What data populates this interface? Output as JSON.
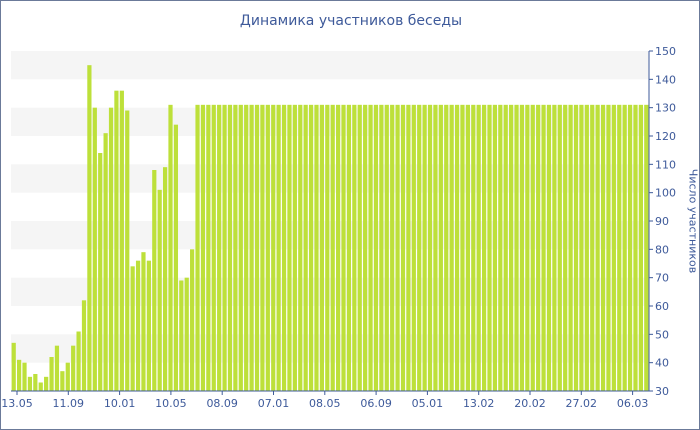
{
  "chart_data": {
    "type": "bar",
    "title": "Динамика участников беседы",
    "xlabel": "",
    "ylabel": "Число участников",
    "ylim": [
      30,
      150
    ],
    "yticks": [
      30,
      40,
      50,
      60,
      70,
      80,
      90,
      100,
      110,
      120,
      130,
      140,
      150
    ],
    "xticks": [
      "13.05",
      "11.09",
      "10.01",
      "10.05",
      "08.09",
      "07.01",
      "08.05",
      "06.09",
      "05.01",
      "13.02",
      "20.02",
      "27.02",
      "06.03"
    ],
    "grid": "alternating horizontal bands",
    "bar_color": "#bde03a",
    "band_color": "#f5f5f5",
    "values": [
      47,
      41,
      40,
      35,
      36,
      33,
      35,
      42,
      46,
      37,
      40,
      46,
      51,
      62,
      145,
      130,
      114,
      121,
      130,
      136,
      136,
      129,
      74,
      76,
      79,
      76,
      108,
      101,
      109,
      131,
      124,
      69,
      70,
      80,
      131,
      131,
      131,
      131,
      131,
      131,
      131,
      131,
      131,
      131,
      131,
      131,
      131,
      131,
      131,
      131,
      131,
      131,
      131,
      131,
      131,
      131,
      131,
      131,
      131,
      131,
      131,
      131,
      131,
      131,
      131,
      131,
      131,
      131,
      131,
      131,
      131,
      131,
      131,
      131,
      131,
      131,
      131,
      131,
      131,
      131,
      131,
      131,
      131,
      131,
      131,
      131,
      131,
      131,
      131,
      131,
      131,
      131,
      131,
      131,
      131,
      131,
      131,
      131,
      131,
      131,
      131,
      131,
      131,
      131,
      131,
      131,
      131,
      131,
      131,
      131,
      131,
      131,
      131,
      131,
      131,
      131,
      131,
      131
    ]
  }
}
